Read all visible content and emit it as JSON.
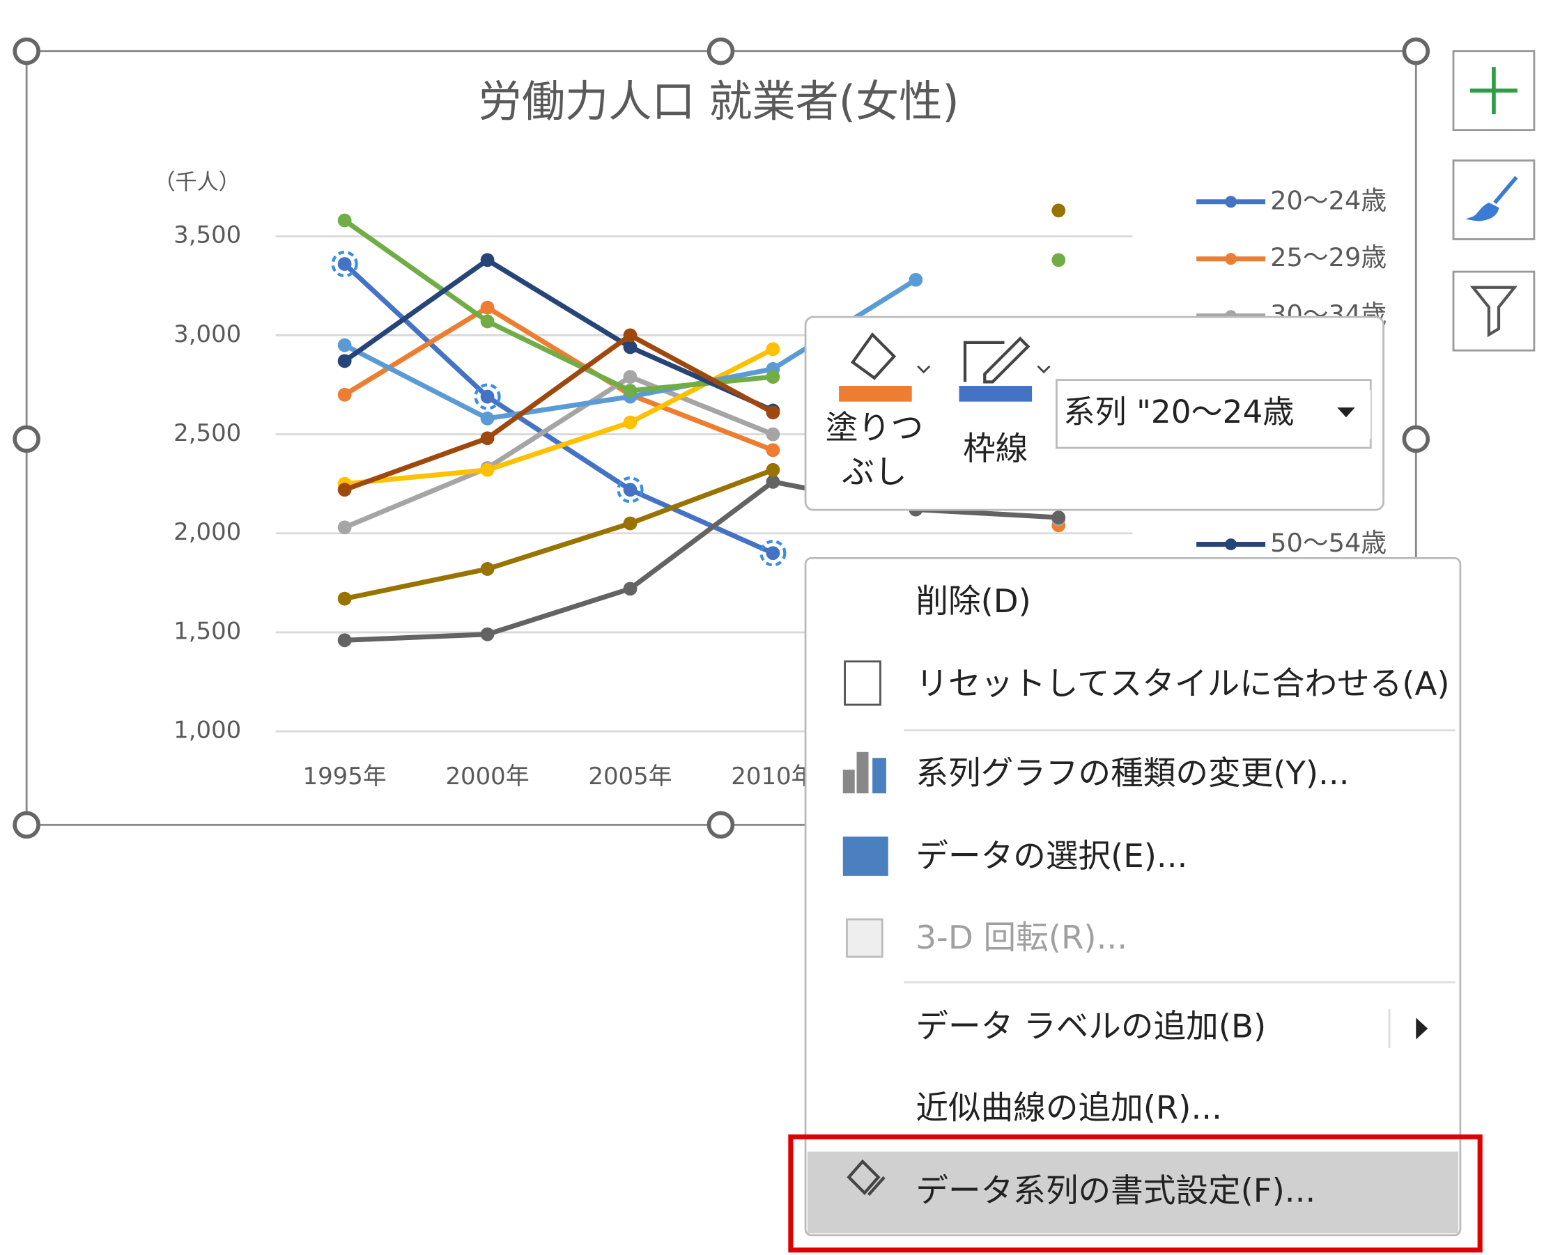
{
  "chart_data": {
    "type": "line",
    "title": "労働力人口 就業者(女性)",
    "y_label": "（千人）",
    "categories": [
      "1995年",
      "2000年",
      "2005年",
      "2010年",
      null,
      null
    ],
    "ylim": [
      1000,
      3500
    ],
    "yticks": [
      {
        "value": 1000,
        "label": "1,000"
      },
      {
        "value": 1500,
        "label": "1,500"
      },
      {
        "value": 2000,
        "label": "2,000"
      },
      {
        "value": 2500,
        "label": "2,500"
      },
      {
        "value": 3000,
        "label": "3,000"
      },
      {
        "value": 3500,
        "label": "3,500"
      }
    ],
    "grid": true,
    "series": [
      {
        "name": "20〜24歳",
        "color": "#4472c4",
        "values": [
          3360,
          2690,
          2220,
          1900,
          null,
          null
        ]
      },
      {
        "name": "25〜29歳",
        "color": "#ed7d31",
        "values": [
          2700,
          3140,
          2700,
          2420,
          null,
          2040
        ]
      },
      {
        "name": "30〜34歳",
        "color": "#a5a5a5",
        "values": [
          2030,
          2330,
          2790,
          2500,
          null,
          2070
        ]
      },
      {
        "name": null,
        "color": "#ffc000",
        "values": [
          2250,
          2320,
          2560,
          2930,
          null,
          null
        ]
      },
      {
        "name": null,
        "color": "#5b9bd5",
        "values": [
          2950,
          2580,
          2690,
          2830,
          3280,
          null
        ]
      },
      {
        "name": null,
        "color": "#70ad47",
        "values": [
          3580,
          3070,
          2720,
          2790,
          null,
          3380
        ]
      },
      {
        "name": "50〜54歳",
        "color": "#264478",
        "values": [
          2870,
          3380,
          2940,
          2620,
          null,
          null
        ]
      },
      {
        "name": null,
        "color": "#9e480e",
        "values": [
          2220,
          2480,
          3000,
          2610,
          null,
          null
        ]
      },
      {
        "name": null,
        "color": "#636363",
        "values": [
          1460,
          1490,
          1720,
          2260,
          2120,
          2080
        ]
      },
      {
        "name": null,
        "color": "#997300",
        "values": [
          1670,
          1820,
          2050,
          2320,
          null,
          3630
        ]
      }
    ]
  },
  "toolbar": {
    "fill_lines": [
      "塗りつ",
      "ぶし"
    ],
    "border": "枠線",
    "series_select": "系列 \"20〜24歳"
  },
  "context_menu": {
    "items": [
      "削除(D)",
      "リセットしてスタイルに合わせる(A)",
      "系列グラフの種類の変更(Y)...",
      "データの選択(E)...",
      "3-D 回転(R)...",
      "データ ラベルの追加(B)",
      "近似曲線の追加(R)...",
      "データ系列の書式設定(F)..."
    ]
  }
}
